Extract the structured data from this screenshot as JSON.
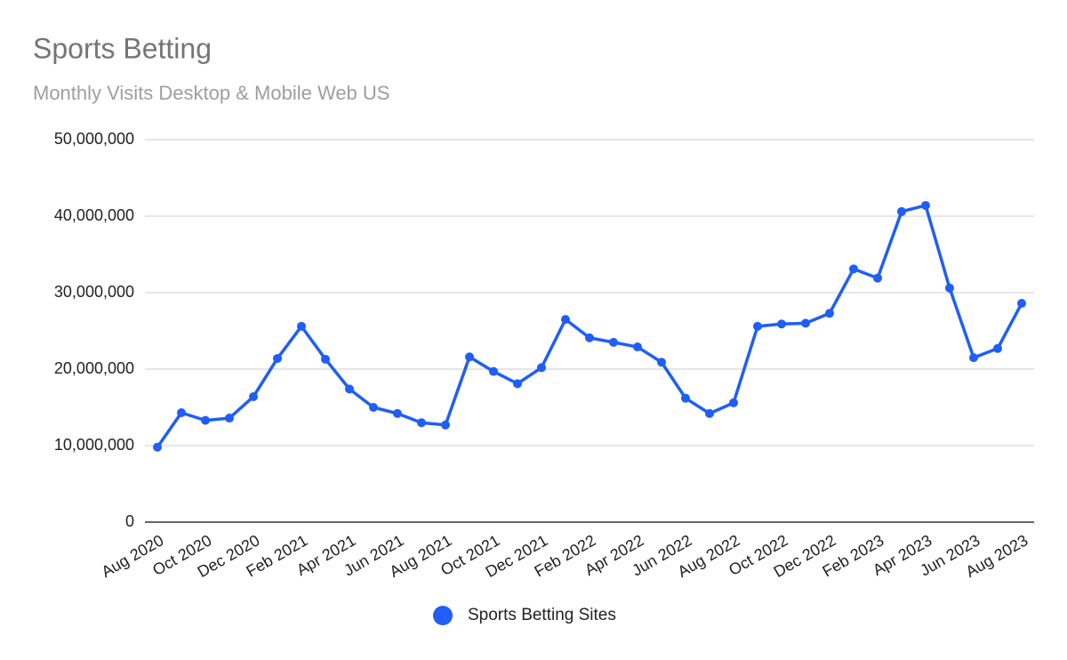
{
  "chart_data": {
    "type": "line",
    "title": "Sports Betting",
    "subtitle": "Monthly Visits Desktop & Mobile Web US",
    "categories": [
      "Aug 2020",
      null,
      "Oct 2020",
      null,
      "Dec 2020",
      null,
      "Feb 2021",
      null,
      "Apr 2021",
      null,
      "Jun 2021",
      null,
      "Aug 2021",
      null,
      "Oct 2021",
      null,
      "Dec 2021",
      null,
      "Feb 2022",
      null,
      "Apr 2022",
      null,
      "Jun 2022",
      null,
      "Aug 2022",
      null,
      "Oct 2022",
      null,
      "Dec 2022",
      null,
      "Feb 2023",
      null,
      "Apr 2023",
      null,
      "Jun 2023",
      null,
      "Aug 2023"
    ],
    "series": [
      {
        "name": "Sports Betting Sites",
        "color": "#1f5ef7",
        "values": [
          9800000,
          14300000,
          13300000,
          13600000,
          16400000,
          21400000,
          25600000,
          21300000,
          17400000,
          15000000,
          14200000,
          13000000,
          12700000,
          21600000,
          19700000,
          18100000,
          20200000,
          26500000,
          24100000,
          23500000,
          22900000,
          20900000,
          16200000,
          14200000,
          15600000,
          25600000,
          25900000,
          26000000,
          27300000,
          33100000,
          31900000,
          40600000,
          41400000,
          30600000,
          21500000,
          22700000,
          28600000
        ]
      }
    ],
    "ylim": [
      0,
      50000000
    ],
    "yticks": [
      0,
      {
        "value": 10000000,
        "label": "10,000,000"
      },
      {
        "value": 20000000,
        "label": "20,000,000"
      },
      {
        "value": 30000000,
        "label": "30,000,000"
      },
      {
        "value": 40000000,
        "label": "40,000,000"
      },
      {
        "value": 50000000,
        "label": "50,000,000"
      }
    ],
    "grid": true,
    "legend": "bottom"
  }
}
